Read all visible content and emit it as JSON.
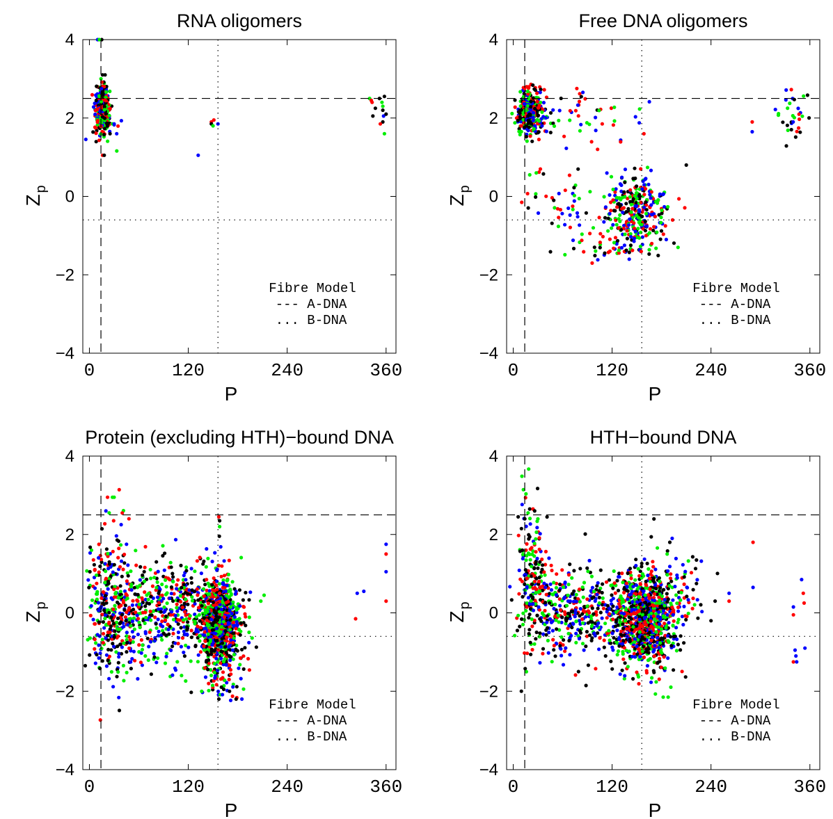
{
  "colors": {
    "blue": "#0000ff",
    "red": "#ff0000",
    "green": "#00ee00",
    "black": "#000000"
  },
  "chart_data": [
    {
      "type": "scatter",
      "title": "RNA oligomers",
      "xlabel": "P",
      "ylabel": "Z",
      "ylabel_sub": "p",
      "xlim": [
        -8,
        372
      ],
      "ylim": [
        -4,
        4
      ],
      "xticks": [
        0,
        120,
        240,
        360
      ],
      "yticks": [
        -4,
        -2,
        0,
        2,
        4
      ],
      "ytick_labels": [
        "−4",
        "−2",
        "0",
        "2",
        "4"
      ],
      "fibre_model": {
        "A_DNA": {
          "P": 14,
          "Zp": 2.5
        },
        "B_DNA": {
          "P": 156,
          "Zp": -0.6
        }
      },
      "legend": {
        "heading": "Fibre Model",
        "entries": [
          "--- A-DNA",
          "... B-DNA"
        ],
        "position": "bottom-right"
      },
      "clusters": [
        {
          "center": [
            16,
            2.2
          ],
          "spread": [
            4,
            0.28
          ],
          "count": 380
        },
        {
          "center": [
            17,
            1.6
          ],
          "spread": [
            10,
            0.2
          ],
          "count": 20
        }
      ],
      "points": [
        [
          10,
          4.0,
          "blue"
        ],
        [
          15,
          4.0,
          "black"
        ],
        [
          12,
          4.0,
          "green"
        ],
        [
          16,
          3.1,
          "black"
        ],
        [
          19,
          3.1,
          "black"
        ],
        [
          14,
          3.0,
          "green"
        ],
        [
          16,
          1.05,
          "red"
        ],
        [
          18,
          1.05,
          "black"
        ],
        [
          28,
          1.85,
          "green"
        ],
        [
          30,
          1.85,
          "blue"
        ],
        [
          25,
          1.6,
          "black"
        ],
        [
          148,
          1.9,
          "red"
        ],
        [
          151,
          1.95,
          "red"
        ],
        [
          148,
          1.85,
          "black"
        ],
        [
          156,
          1.85,
          "blue"
        ],
        [
          150,
          1.8,
          "green"
        ],
        [
          132,
          1.05,
          "blue"
        ],
        [
          340,
          2.5,
          "green"
        ],
        [
          343,
          2.4,
          "red"
        ],
        [
          352,
          2.5,
          "black"
        ],
        [
          355,
          2.4,
          "green"
        ],
        [
          356,
          2.3,
          "green"
        ],
        [
          358,
          2.55,
          "black"
        ],
        [
          356,
          2.2,
          "black"
        ],
        [
          357,
          2.05,
          "blue"
        ],
        [
          360,
          2.1,
          "black"
        ],
        [
          356,
          1.9,
          "black"
        ],
        [
          353,
          1.85,
          "red"
        ],
        [
          358,
          1.6,
          "green"
        ],
        [
          344,
          2.05,
          "black"
        ],
        [
          347,
          2.25,
          "black"
        ],
        [
          342,
          2.45,
          "red"
        ]
      ]
    },
    {
      "type": "scatter",
      "title": "Free DNA oligomers",
      "xlabel": "P",
      "ylabel": "Z",
      "ylabel_sub": "p",
      "xlim": [
        -8,
        372
      ],
      "ylim": [
        -4,
        4
      ],
      "xticks": [
        0,
        120,
        240,
        360
      ],
      "yticks": [
        -4,
        -2,
        0,
        2,
        4
      ],
      "ytick_labels": [
        "−4",
        "−2",
        "0",
        "2",
        "4"
      ],
      "fibre_model": {
        "A_DNA": {
          "P": 14,
          "Zp": 2.5
        },
        "B_DNA": {
          "P": 156,
          "Zp": -0.6
        }
      },
      "legend": {
        "heading": "Fibre Model",
        "entries": [
          "--- A-DNA",
          "... B-DNA"
        ],
        "position": "bottom-right"
      },
      "clusters": [
        {
          "center": [
            20,
            2.15
          ],
          "spread": [
            8,
            0.3
          ],
          "count": 320
        },
        {
          "center": [
            150,
            -0.4
          ],
          "spread": [
            18,
            0.45
          ],
          "count": 320
        },
        {
          "center": [
            70,
            2.0
          ],
          "spread": [
            40,
            0.35
          ],
          "count": 60
        },
        {
          "center": [
            60,
            -0.3
          ],
          "spread": [
            30,
            0.5
          ],
          "count": 50
        },
        {
          "center": [
            120,
            -1.3
          ],
          "spread": [
            25,
            0.2
          ],
          "count": 40
        },
        {
          "center": [
            345,
            2.0
          ],
          "spread": [
            12,
            0.35
          ],
          "count": 40
        }
      ],
      "points": [
        [
          290,
          1.9,
          "red"
        ],
        [
          290,
          1.65,
          "blue"
        ],
        [
          20,
          0.55,
          "green"
        ],
        [
          28,
          0.6,
          "green"
        ],
        [
          210,
          0.8,
          "black"
        ],
        [
          200,
          -1.3,
          "green"
        ]
      ]
    },
    {
      "type": "scatter",
      "title": "Protein (excluding HTH)−bound DNA",
      "xlabel": "P",
      "ylabel": "Z",
      "ylabel_sub": "p",
      "xlim": [
        -8,
        372
      ],
      "ylim": [
        -4,
        4
      ],
      "xticks": [
        0,
        120,
        240,
        360
      ],
      "yticks": [
        -4,
        -2,
        0,
        2,
        4
      ],
      "ytick_labels": [
        "−4",
        "−2",
        "0",
        "2",
        "4"
      ],
      "fibre_model": {
        "A_DNA": {
          "P": 14,
          "Zp": 2.5
        },
        "B_DNA": {
          "P": 156,
          "Zp": -0.6
        }
      },
      "legend": {
        "heading": "Fibre Model",
        "entries": [
          "--- A-DNA",
          "... B-DNA"
        ],
        "position": "bottom-right"
      },
      "clusters": [
        {
          "center": [
            158,
            -0.3
          ],
          "spread": [
            12,
            0.55
          ],
          "count": 900
        },
        {
          "center": [
            70,
            -0.1
          ],
          "spread": [
            45,
            0.7
          ],
          "count": 500
        },
        {
          "center": [
            25,
            0.2
          ],
          "spread": [
            12,
            1.0
          ],
          "count": 200
        },
        {
          "center": [
            120,
            0.3
          ],
          "spread": [
            30,
            0.6
          ],
          "count": 180
        },
        {
          "center": [
            160,
            -1.7
          ],
          "spread": [
            15,
            0.25
          ],
          "count": 40
        }
      ],
      "points": [
        [
          22,
          2.95,
          "red"
        ],
        [
          28,
          2.95,
          "green"
        ],
        [
          30,
          2.95,
          "green"
        ],
        [
          20,
          2.6,
          "blue"
        ],
        [
          24,
          2.55,
          "green"
        ],
        [
          157,
          2.45,
          "red"
        ],
        [
          158,
          2.35,
          "black"
        ],
        [
          158,
          2.2,
          "green"
        ],
        [
          360,
          1.75,
          "blue"
        ],
        [
          360,
          1.5,
          "red"
        ],
        [
          360,
          1.05,
          "blue"
        ],
        [
          360,
          0.3,
          "red"
        ],
        [
          325,
          0.5,
          "blue"
        ],
        [
          333,
          0.55,
          "blue"
        ],
        [
          323,
          -0.15,
          "red"
        ],
        [
          212,
          0.45,
          "green"
        ],
        [
          208,
          0.3,
          "green"
        ],
        [
          48,
          2.4,
          "red"
        ],
        [
          45,
          1.75,
          "blue"
        ],
        [
          178,
          -2.2,
          "black"
        ],
        [
          185,
          -2.2,
          "blue"
        ],
        [
          170,
          -2.0,
          "black"
        ]
      ]
    },
    {
      "type": "scatter",
      "title": "HTH−bound DNA",
      "xlabel": "P",
      "ylabel": "Z",
      "ylabel_sub": "p",
      "xlim": [
        -8,
        372
      ],
      "ylim": [
        -4,
        4
      ],
      "xticks": [
        0,
        120,
        240,
        360
      ],
      "yticks": [
        -4,
        -2,
        0,
        2,
        4
      ],
      "ytick_labels": [
        "−4",
        "−2",
        "0",
        "2",
        "4"
      ],
      "fibre_model": {
        "A_DNA": {
          "P": 14,
          "Zp": 2.5
        },
        "B_DNA": {
          "P": 156,
          "Zp": -0.6
        }
      },
      "legend": {
        "heading": "Fibre Model",
        "entries": [
          "--- A-DNA",
          "... B-DNA"
        ],
        "position": "bottom-right"
      },
      "clusters": [
        {
          "center": [
            160,
            -0.2
          ],
          "spread": [
            20,
            0.6
          ],
          "count": 1000
        },
        {
          "center": [
            70,
            0.0
          ],
          "spread": [
            35,
            0.6
          ],
          "count": 420
        },
        {
          "center": [
            22,
            1.0
          ],
          "spread": [
            8,
            0.9
          ],
          "count": 150
        },
        {
          "center": [
            200,
            0.6
          ],
          "spread": [
            15,
            0.5
          ],
          "count": 60
        }
      ],
      "points": [
        [
          20,
          2.65,
          "black"
        ],
        [
          24,
          2.65,
          "red"
        ],
        [
          26,
          2.6,
          "black"
        ],
        [
          18,
          2.55,
          "green"
        ],
        [
          10,
          2.15,
          "black"
        ],
        [
          14,
          2.4,
          "black"
        ],
        [
          6,
          2.45,
          "black"
        ],
        [
          291,
          1.8,
          "red"
        ],
        [
          291,
          0.65,
          "blue"
        ],
        [
          262,
          0.5,
          "blue"
        ],
        [
          262,
          0.3,
          "red"
        ],
        [
          350,
          0.85,
          "blue"
        ],
        [
          352,
          0.5,
          "red"
        ],
        [
          353,
          0.25,
          "red"
        ],
        [
          340,
          0.15,
          "blue"
        ],
        [
          340,
          -0.05,
          "red"
        ],
        [
          342,
          -0.95,
          "blue"
        ],
        [
          343,
          -1.1,
          "blue"
        ],
        [
          340,
          -1.25,
          "red"
        ],
        [
          344,
          -1.25,
          "blue"
        ],
        [
          354,
          -0.9,
          "blue"
        ],
        [
          240,
          -0.2,
          "black"
        ],
        [
          245,
          0.3,
          "black"
        ],
        [
          5,
          -0.45,
          "black"
        ],
        [
          16,
          -1.5,
          "green"
        ],
        [
          182,
          -2.15,
          "green"
        ],
        [
          188,
          -2.15,
          "green"
        ],
        [
          190,
          1.8,
          "black"
        ]
      ]
    }
  ]
}
